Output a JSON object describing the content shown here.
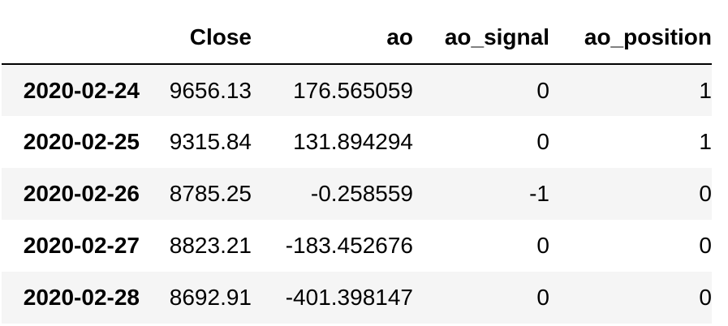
{
  "table": {
    "index_header": "",
    "columns": [
      "Close",
      "ao",
      "ao_signal",
      "ao_position"
    ],
    "rows": [
      {
        "index": "2020-02-24",
        "cells": [
          "9656.13",
          "176.565059",
          "0",
          "1"
        ]
      },
      {
        "index": "2020-02-25",
        "cells": [
          "9315.84",
          "131.894294",
          "0",
          "1"
        ]
      },
      {
        "index": "2020-02-26",
        "cells": [
          "8785.25",
          "-0.258559",
          "-1",
          "0"
        ]
      },
      {
        "index": "2020-02-27",
        "cells": [
          "8823.21",
          "-183.452676",
          "0",
          "0"
        ]
      },
      {
        "index": "2020-02-28",
        "cells": [
          "8692.91",
          "-401.398147",
          "0",
          "0"
        ]
      }
    ]
  }
}
